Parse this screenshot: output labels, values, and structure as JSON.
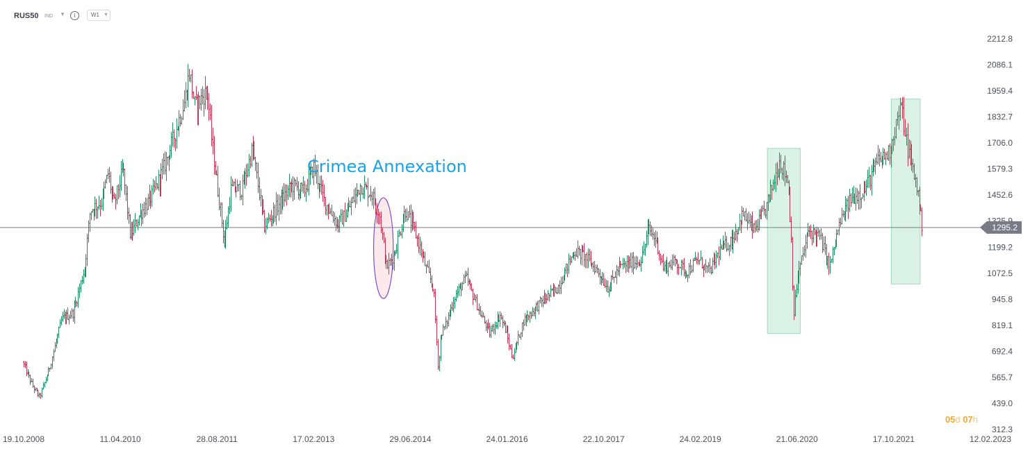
{
  "toolbar": {
    "symbol": "RUS50",
    "symbol_type": "IND",
    "info_icon": "info-icon",
    "timeframe": "W1"
  },
  "price_label": "1295.2",
  "countdown": {
    "days": "05",
    "days_unit": "d",
    "hours": "07",
    "hours_unit": "h"
  },
  "colors": {
    "up": "#1f8f5f",
    "down": "#c2344f",
    "price_line": "#787b86",
    "price_tag": "#787b86",
    "annotation_text": "#1aa3e8",
    "ellipse_stroke": "#7b4fc9",
    "ellipse_fill": "#fbe3e6",
    "highlight_fill": "#cdeedd",
    "highlight_stroke": "#9fd8bd",
    "countdown": "#f4a431"
  },
  "chart_data": {
    "type": "ohlc",
    "title": "",
    "instrument": "RUS50",
    "timeframe": "W1",
    "y_axis": {
      "ticks": [
        2212.8,
        2086.1,
        1959.4,
        1832.7,
        1706.0,
        1579.3,
        1452.6,
        1325.9,
        1199.2,
        1072.5,
        945.8,
        819.1,
        692.4,
        565.7,
        439.0,
        312.3
      ],
      "tick_labels": [
        "2212.8",
        "2086.1",
        "1959.4",
        "1832.7",
        "1706.0",
        "1579.3",
        "1452.6",
        "1325.9",
        "1199.2",
        "1072.5",
        "945.8",
        "819.1",
        "692.4",
        "565.7",
        "439.0",
        "312.3"
      ],
      "range": [
        312.3,
        2212.8
      ]
    },
    "x_axis": {
      "tick_labels": [
        "19.10.2008",
        "11.04.2010",
        "28.08.2011",
        "17.02.2013",
        "29.06.2014",
        "24.01.2016",
        "22.10.2017",
        "24.02.2019",
        "21.06.2020",
        "17.10.2021",
        "12.02.2023"
      ]
    },
    "current_price": 1295.2,
    "anchors": [
      {
        "d": "2008-10-19",
        "v": 640
      },
      {
        "d": "2008-12-15",
        "v": 520
      },
      {
        "d": "2009-01-20",
        "v": 470
      },
      {
        "d": "2009-03-10",
        "v": 600
      },
      {
        "d": "2009-05-20",
        "v": 850
      },
      {
        "d": "2009-07-20",
        "v": 880
      },
      {
        "d": "2009-09-20",
        "v": 1100
      },
      {
        "d": "2009-10-20",
        "v": 1380
      },
      {
        "d": "2009-12-20",
        "v": 1420
      },
      {
        "d": "2010-01-25",
        "v": 1560
      },
      {
        "d": "2010-02-25",
        "v": 1400
      },
      {
        "d": "2010-04-15",
        "v": 1580
      },
      {
        "d": "2010-05-25",
        "v": 1250
      },
      {
        "d": "2010-07-10",
        "v": 1350
      },
      {
        "d": "2010-09-20",
        "v": 1450
      },
      {
        "d": "2010-11-20",
        "v": 1580
      },
      {
        "d": "2011-01-10",
        "v": 1720
      },
      {
        "d": "2011-03-15",
        "v": 1910
      },
      {
        "d": "2011-04-10",
        "v": 2050
      },
      {
        "d": "2011-05-10",
        "v": 1880
      },
      {
        "d": "2011-06-25",
        "v": 1940
      },
      {
        "d": "2011-07-15",
        "v": 1960
      },
      {
        "d": "2011-08-10",
        "v": 1700
      },
      {
        "d": "2011-09-25",
        "v": 1380
      },
      {
        "d": "2011-10-15",
        "v": 1220
      },
      {
        "d": "2011-11-20",
        "v": 1480
      },
      {
        "d": "2012-01-20",
        "v": 1480
      },
      {
        "d": "2012-03-15",
        "v": 1680
      },
      {
        "d": "2012-05-20",
        "v": 1300
      },
      {
        "d": "2012-07-15",
        "v": 1380
      },
      {
        "d": "2012-10-15",
        "v": 1500
      },
      {
        "d": "2012-12-20",
        "v": 1470
      },
      {
        "d": "2013-02-10",
        "v": 1590
      },
      {
        "d": "2013-04-10",
        "v": 1420
      },
      {
        "d": "2013-06-20",
        "v": 1310
      },
      {
        "d": "2013-08-10",
        "v": 1370
      },
      {
        "d": "2013-10-20",
        "v": 1500
      },
      {
        "d": "2013-12-20",
        "v": 1460
      },
      {
        "d": "2014-02-01",
        "v": 1360
      },
      {
        "d": "2014-03-10",
        "v": 1100
      },
      {
        "d": "2014-04-20",
        "v": 1160
      },
      {
        "d": "2014-06-20",
        "v": 1380
      },
      {
        "d": "2014-08-10",
        "v": 1280
      },
      {
        "d": "2014-10-10",
        "v": 1100
      },
      {
        "d": "2014-11-20",
        "v": 1000
      },
      {
        "d": "2014-12-16",
        "v": 600
      },
      {
        "d": "2014-12-30",
        "v": 780
      },
      {
        "d": "2015-01-25",
        "v": 820
      },
      {
        "d": "2015-03-15",
        "v": 960
      },
      {
        "d": "2015-05-15",
        "v": 1050
      },
      {
        "d": "2015-07-20",
        "v": 900
      },
      {
        "d": "2015-09-20",
        "v": 780
      },
      {
        "d": "2015-11-15",
        "v": 870
      },
      {
        "d": "2015-12-20",
        "v": 780
      },
      {
        "d": "2016-01-20",
        "v": 660
      },
      {
        "d": "2016-03-20",
        "v": 840
      },
      {
        "d": "2016-06-20",
        "v": 930
      },
      {
        "d": "2016-09-20",
        "v": 1000
      },
      {
        "d": "2016-12-20",
        "v": 1180
      },
      {
        "d": "2017-02-10",
        "v": 1160
      },
      {
        "d": "2017-04-20",
        "v": 1090
      },
      {
        "d": "2017-06-20",
        "v": 1000
      },
      {
        "d": "2017-08-20",
        "v": 1100
      },
      {
        "d": "2017-10-20",
        "v": 1120
      },
      {
        "d": "2017-12-20",
        "v": 1140
      },
      {
        "d": "2018-01-25",
        "v": 1290
      },
      {
        "d": "2018-03-10",
        "v": 1230
      },
      {
        "d": "2018-04-15",
        "v": 1100
      },
      {
        "d": "2018-06-20",
        "v": 1130
      },
      {
        "d": "2018-08-20",
        "v": 1080
      },
      {
        "d": "2018-10-20",
        "v": 1140
      },
      {
        "d": "2018-12-20",
        "v": 1080
      },
      {
        "d": "2019-02-20",
        "v": 1190
      },
      {
        "d": "2019-04-20",
        "v": 1230
      },
      {
        "d": "2019-06-20",
        "v": 1360
      },
      {
        "d": "2019-08-20",
        "v": 1280
      },
      {
        "d": "2019-10-20",
        "v": 1380
      },
      {
        "d": "2020-01-05",
        "v": 1620
      },
      {
        "d": "2020-02-20",
        "v": 1520
      },
      {
        "d": "2020-03-10",
        "v": 1200
      },
      {
        "d": "2020-03-20",
        "v": 860
      },
      {
        "d": "2020-04-10",
        "v": 1050
      },
      {
        "d": "2020-06-10",
        "v": 1280
      },
      {
        "d": "2020-08-10",
        "v": 1250
      },
      {
        "d": "2020-10-01",
        "v": 1100
      },
      {
        "d": "2020-11-20",
        "v": 1300
      },
      {
        "d": "2021-01-20",
        "v": 1430
      },
      {
        "d": "2021-04-10",
        "v": 1480
      },
      {
        "d": "2021-06-20",
        "v": 1620
      },
      {
        "d": "2021-08-20",
        "v": 1660
      },
      {
        "d": "2021-10-10",
        "v": 1850
      },
      {
        "d": "2021-10-25",
        "v": 1880
      },
      {
        "d": "2021-11-25",
        "v": 1690
      },
      {
        "d": "2021-12-25",
        "v": 1580
      },
      {
        "d": "2022-01-20",
        "v": 1480
      },
      {
        "d": "2022-02-10",
        "v": 1310
      }
    ]
  },
  "annotations": {
    "crimea_text": "Crimea Annexation",
    "ellipse": {
      "start": "2013-12-25",
      "end": "2014-04-10",
      "low": 950,
      "high": 1440
    },
    "boxes": [
      {
        "start": "2019-10-25",
        "end": "2020-04-20",
        "low": 780,
        "high": 1680
      },
      {
        "start": "2021-08-25",
        "end": "2022-01-28",
        "low": 1020,
        "high": 1920
      }
    ]
  }
}
